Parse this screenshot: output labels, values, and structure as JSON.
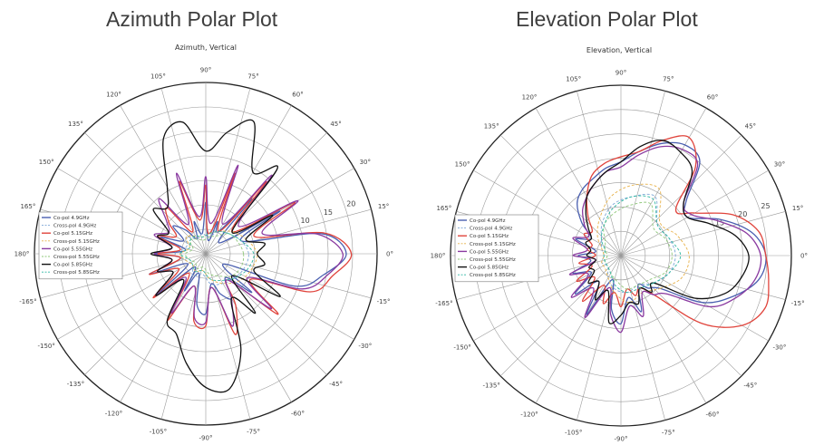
{
  "page": {
    "left_heading": "Azimuth Polar Plot",
    "right_heading": "Elevation Polar Plot"
  },
  "colors": {
    "co_4_9": "#4a5fb0",
    "cross_4_9": "#7da6d6",
    "co_5_15": "#e0443c",
    "cross_5_15": "#e8b24a",
    "co_5_55": "#8a3aa0",
    "cross_5_55": "#8fc87a",
    "co_5_85": "#111111",
    "cross_5_85": "#2fb7a3"
  },
  "chart_data": [
    {
      "type": "polar-line",
      "title": "Azimuth, Vertical",
      "theta_unit": "degrees",
      "theta_ticks": [
        "0°",
        "15°",
        "30°",
        "45°",
        "60°",
        "75°",
        "90°",
        "105°",
        "120°",
        "135°",
        "150°",
        "165°",
        "180°",
        "-165°",
        "-150°",
        "-135°",
        "-120°",
        "-105°",
        "-90°",
        "-75°",
        "-60°",
        "-45°",
        "-30°",
        "-15°"
      ],
      "r_ticks": [
        "10",
        "15",
        "20"
      ],
      "grid": true,
      "legend_position": "left",
      "series": [
        {
          "name": "Co-pol 4.9GHz",
          "color_key": "co_4_9",
          "dash": false,
          "theta": [
            0,
            10,
            20,
            30,
            40,
            50,
            60,
            70,
            80,
            90,
            100,
            110,
            120,
            130,
            140,
            150,
            160,
            170,
            180,
            190,
            200,
            210,
            220,
            230,
            240,
            250,
            260,
            270,
            280,
            290,
            300,
            310,
            320,
            330,
            340,
            350
          ],
          "r": [
            0.82,
            0.68,
            0.22,
            0.5,
            0.1,
            0.42,
            0.15,
            0.2,
            0.08,
            0.3,
            0.12,
            0.2,
            0.1,
            0.18,
            0.25,
            0.15,
            0.28,
            0.12,
            0.3,
            0.15,
            0.35,
            0.12,
            0.38,
            0.1,
            0.25,
            0.12,
            0.3,
            0.35,
            0.18,
            0.25,
            0.3,
            0.18,
            0.35,
            0.12,
            0.55,
            0.7
          ]
        },
        {
          "name": "Cross-pol 4.9GHz",
          "color_key": "cross_4_9",
          "dash": true,
          "theta": [
            0,
            20,
            40,
            60,
            80,
            100,
            120,
            140,
            160,
            180,
            200,
            220,
            240,
            260,
            280,
            300,
            320,
            340
          ],
          "r": [
            0.25,
            0.22,
            0.18,
            0.15,
            0.1,
            0.12,
            0.1,
            0.15,
            0.12,
            0.18,
            0.12,
            0.1,
            0.15,
            0.12,
            0.18,
            0.2,
            0.22,
            0.24
          ]
        },
        {
          "name": "Co-pol 5.15GHz",
          "color_key": "co_5_15",
          "dash": false,
          "theta": [
            0,
            10,
            20,
            30,
            40,
            50,
            60,
            70,
            80,
            90,
            100,
            110,
            120,
            130,
            140,
            150,
            160,
            170,
            180,
            190,
            200,
            210,
            220,
            230,
            240,
            250,
            260,
            270,
            280,
            290,
            300,
            310,
            320,
            330,
            340,
            350
          ],
          "r": [
            0.85,
            0.7,
            0.3,
            0.6,
            0.2,
            0.55,
            0.15,
            0.5,
            0.12,
            0.4,
            0.2,
            0.45,
            0.15,
            0.35,
            0.28,
            0.2,
            0.3,
            0.15,
            0.28,
            0.15,
            0.35,
            0.18,
            0.4,
            0.15,
            0.45,
            0.2,
            0.4,
            0.42,
            0.2,
            0.5,
            0.35,
            0.2,
            0.55,
            0.3,
            0.65,
            0.75
          ]
        },
        {
          "name": "Cross-pol 5.15GHz",
          "color_key": "cross_5_15",
          "dash": true,
          "theta": [
            0,
            20,
            40,
            60,
            80,
            100,
            120,
            140,
            160,
            180,
            200,
            220,
            240,
            260,
            280,
            300,
            320,
            340
          ],
          "r": [
            0.3,
            0.25,
            0.2,
            0.15,
            0.12,
            0.1,
            0.12,
            0.15,
            0.1,
            0.15,
            0.12,
            0.1,
            0.12,
            0.1,
            0.15,
            0.2,
            0.25,
            0.28
          ]
        },
        {
          "name": "Co-pol 5.55GHz",
          "color_key": "co_5_55",
          "dash": false,
          "theta": [
            0,
            10,
            20,
            30,
            40,
            50,
            60,
            70,
            80,
            90,
            100,
            110,
            120,
            130,
            140,
            150,
            160,
            170,
            180,
            190,
            200,
            210,
            220,
            230,
            240,
            250,
            260,
            270,
            280,
            290,
            300,
            310,
            320,
            330,
            340,
            350
          ],
          "r": [
            0.8,
            0.66,
            0.35,
            0.62,
            0.25,
            0.6,
            0.2,
            0.55,
            0.18,
            0.45,
            0.22,
            0.5,
            0.2,
            0.42,
            0.3,
            0.25,
            0.32,
            0.2,
            0.3,
            0.2,
            0.3,
            0.22,
            0.38,
            0.18,
            0.4,
            0.2,
            0.38,
            0.4,
            0.2,
            0.45,
            0.3,
            0.2,
            0.5,
            0.28,
            0.6,
            0.72
          ]
        },
        {
          "name": "Cross-pol 5.55GHz",
          "color_key": "cross_5_55",
          "dash": true,
          "theta": [
            0,
            20,
            40,
            60,
            80,
            100,
            120,
            140,
            160,
            180,
            200,
            220,
            240,
            260,
            280,
            300,
            320,
            340
          ],
          "r": [
            0.22,
            0.2,
            0.18,
            0.12,
            0.1,
            0.08,
            0.1,
            0.12,
            0.08,
            0.12,
            0.1,
            0.08,
            0.1,
            0.08,
            0.12,
            0.15,
            0.2,
            0.22
          ]
        },
        {
          "name": "Co-pol 5.85GHz",
          "color_key": "co_5_85",
          "dash": false,
          "theta": [
            0,
            10,
            20,
            30,
            40,
            50,
            60,
            70,
            80,
            90,
            100,
            110,
            120,
            130,
            140,
            150,
            160,
            170,
            180,
            190,
            200,
            210,
            220,
            230,
            240,
            250,
            260,
            270,
            280,
            290,
            300,
            310,
            320,
            330,
            340,
            350
          ],
          "r": [
            0.3,
            0.35,
            0.25,
            0.45,
            0.2,
            0.65,
            0.55,
            0.82,
            0.72,
            0.6,
            0.78,
            0.72,
            0.45,
            0.35,
            0.4,
            0.25,
            0.3,
            0.2,
            0.32,
            0.2,
            0.3,
            0.22,
            0.38,
            0.2,
            0.45,
            0.5,
            0.65,
            0.78,
            0.8,
            0.6,
            0.3,
            0.45,
            0.2,
            0.5,
            0.3,
            0.35
          ]
        },
        {
          "name": "Cross-pol 5.85GHz",
          "color_key": "cross_5_85",
          "dash": true,
          "theta": [
            0,
            20,
            40,
            60,
            80,
            100,
            120,
            140,
            160,
            180,
            200,
            220,
            240,
            260,
            280,
            300,
            320,
            340
          ],
          "r": [
            0.28,
            0.22,
            0.18,
            0.15,
            0.12,
            0.1,
            0.12,
            0.12,
            0.1,
            0.15,
            0.1,
            0.1,
            0.12,
            0.1,
            0.15,
            0.18,
            0.22,
            0.26
          ]
        }
      ]
    },
    {
      "type": "polar-line",
      "title": "Elevation, Vertical",
      "theta_unit": "degrees",
      "theta_ticks": [
        "0°",
        "15°",
        "30°",
        "45°",
        "60°",
        "75°",
        "90°",
        "105°",
        "120°",
        "135°",
        "150°",
        "165°",
        "180°",
        "-165°",
        "-150°",
        "-135°",
        "-120°",
        "-105°",
        "-90°",
        "-75°",
        "-60°",
        "-45°",
        "-30°",
        "-15°"
      ],
      "r_ticks": [
        "15",
        "20",
        "25"
      ],
      "grid": true,
      "legend_position": "left",
      "series": [
        {
          "name": "Co-pol 4.9GHz",
          "color_key": "co_4_9",
          "dash": false,
          "theta": [
            -40,
            -30,
            -20,
            -10,
            0,
            10,
            20,
            30,
            40,
            50,
            60,
            70,
            80,
            90,
            100,
            110,
            120,
            130,
            140,
            150,
            160,
            170,
            180,
            190,
            200,
            210,
            220,
            230,
            240,
            250,
            260,
            270,
            280,
            290,
            300,
            310
          ],
          "r": [
            0.3,
            0.55,
            0.7,
            0.82,
            0.85,
            0.78,
            0.62,
            0.45,
            0.5,
            0.72,
            0.75,
            0.7,
            0.62,
            0.55,
            0.52,
            0.48,
            0.45,
            0.4,
            0.3,
            0.2,
            0.28,
            0.15,
            0.25,
            0.18,
            0.3,
            0.2,
            0.35,
            0.2,
            0.4,
            0.15,
            0.32,
            0.4,
            0.25,
            0.35,
            0.2,
            0.25
          ]
        },
        {
          "name": "Cross-pol 4.9GHz",
          "color_key": "cross_4_9",
          "dash": true,
          "theta": [
            -40,
            -20,
            0,
            20,
            40,
            60,
            80,
            100,
            120,
            140,
            160,
            180,
            200,
            220,
            240,
            260,
            280,
            300
          ],
          "r": [
            0.25,
            0.3,
            0.32,
            0.3,
            0.28,
            0.4,
            0.35,
            0.3,
            0.22,
            0.15,
            0.12,
            0.1,
            0.12,
            0.1,
            0.15,
            0.2,
            0.22,
            0.2
          ]
        },
        {
          "name": "Co-pol 5.15GHz",
          "color_key": "co_5_15",
          "dash": false,
          "theta": [
            -50,
            -40,
            -30,
            -20,
            -10,
            0,
            10,
            20,
            30,
            40,
            50,
            60,
            70,
            80,
            90,
            100,
            110,
            120,
            130,
            140,
            150,
            160,
            170,
            180,
            190,
            200,
            210,
            220,
            230,
            240,
            250,
            260,
            270,
            280,
            290,
            300
          ],
          "r": [
            0.3,
            0.62,
            0.82,
            0.9,
            0.88,
            0.85,
            0.82,
            0.7,
            0.5,
            0.42,
            0.68,
            0.8,
            0.72,
            0.62,
            0.58,
            0.55,
            0.5,
            0.4,
            0.3,
            0.22,
            0.25,
            0.18,
            0.2,
            0.15,
            0.25,
            0.18,
            0.3,
            0.2,
            0.35,
            0.2,
            0.3,
            0.22,
            0.3,
            0.2,
            0.25,
            0.22
          ]
        },
        {
          "name": "Cross-pol 5.15GHz",
          "color_key": "cross_5_15",
          "dash": true,
          "theta": [
            -40,
            -20,
            0,
            20,
            40,
            60,
            80,
            100,
            120,
            140,
            160,
            180,
            200,
            220,
            240,
            260,
            280,
            300
          ],
          "r": [
            0.3,
            0.38,
            0.4,
            0.35,
            0.3,
            0.45,
            0.42,
            0.35,
            0.25,
            0.18,
            0.12,
            0.1,
            0.12,
            0.12,
            0.15,
            0.22,
            0.28,
            0.25
          ]
        },
        {
          "name": "Co-pol 5.55GHz",
          "color_key": "co_5_55",
          "dash": false,
          "theta": [
            -40,
            -30,
            -20,
            -10,
            0,
            10,
            20,
            30,
            40,
            50,
            60,
            70,
            80,
            90,
            100,
            110,
            120,
            130,
            140,
            150,
            160,
            170,
            180,
            190,
            200,
            210,
            220,
            230,
            240,
            250,
            260,
            270,
            280,
            290,
            300,
            310
          ],
          "r": [
            0.35,
            0.6,
            0.72,
            0.8,
            0.82,
            0.75,
            0.6,
            0.48,
            0.48,
            0.7,
            0.72,
            0.68,
            0.6,
            0.52,
            0.5,
            0.45,
            0.4,
            0.35,
            0.28,
            0.22,
            0.3,
            0.2,
            0.28,
            0.15,
            0.32,
            0.22,
            0.38,
            0.25,
            0.42,
            0.2,
            0.35,
            0.45,
            0.3,
            0.38,
            0.25,
            0.3
          ]
        },
        {
          "name": "Cross-pol 5.55GHz",
          "color_key": "cross_5_55",
          "dash": true,
          "theta": [
            -40,
            -20,
            0,
            20,
            40,
            60,
            80,
            100,
            120,
            140,
            160,
            180,
            200,
            220,
            240,
            260,
            280,
            300
          ],
          "r": [
            0.22,
            0.28,
            0.3,
            0.28,
            0.25,
            0.35,
            0.3,
            0.25,
            0.2,
            0.12,
            0.1,
            0.08,
            0.1,
            0.1,
            0.12,
            0.15,
            0.2,
            0.2
          ]
        },
        {
          "name": "Co-pol 5.85GHz",
          "color_key": "co_5_85",
          "dash": false,
          "theta": [
            -40,
            -30,
            -20,
            -10,
            0,
            10,
            20,
            30,
            40,
            50,
            60,
            70,
            80,
            90,
            100,
            110,
            120,
            130,
            140,
            150,
            160,
            170,
            180,
            190,
            200,
            210,
            220,
            230,
            240,
            250,
            260,
            270,
            280,
            290,
            300,
            310
          ],
          "r": [
            0.25,
            0.5,
            0.65,
            0.72,
            0.75,
            0.68,
            0.55,
            0.45,
            0.48,
            0.65,
            0.7,
            0.72,
            0.65,
            0.55,
            0.5,
            0.45,
            0.4,
            0.32,
            0.25,
            0.2,
            0.22,
            0.18,
            0.2,
            0.15,
            0.2,
            0.18,
            0.25,
            0.2,
            0.3,
            0.22,
            0.4,
            0.35,
            0.28,
            0.3,
            0.22,
            0.28
          ]
        },
        {
          "name": "Cross-pol 5.85GHz",
          "color_key": "cross_5_85",
          "dash": true,
          "theta": [
            -40,
            -20,
            0,
            20,
            40,
            60,
            80,
            100,
            120,
            140,
            160,
            180,
            200,
            220,
            240,
            260,
            280,
            300
          ],
          "r": [
            0.25,
            0.3,
            0.35,
            0.3,
            0.28,
            0.38,
            0.35,
            0.28,
            0.2,
            0.15,
            0.1,
            0.1,
            0.1,
            0.1,
            0.12,
            0.18,
            0.22,
            0.22
          ]
        }
      ]
    }
  ]
}
